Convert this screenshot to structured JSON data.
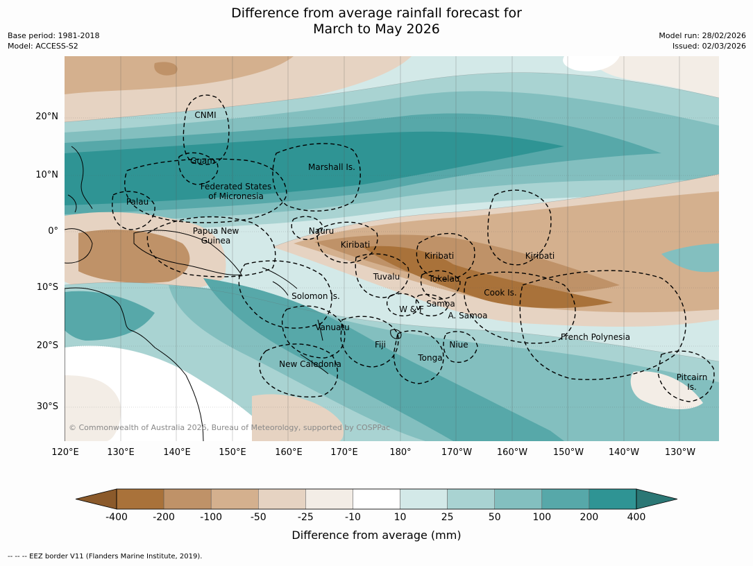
{
  "title_line1": "Difference from average rainfall forecast for",
  "title_line2": "March to May 2026",
  "meta_left": {
    "base_period": "Base period: 1981-2018",
    "model": "Model: ACCESS-S2"
  },
  "meta_right": {
    "model_run": "Model run: 28/02/2026",
    "issued": "Issued: 02/03/2026"
  },
  "lat_labels": [
    "20°N",
    "10°N",
    "0°",
    "10°S",
    "20°S",
    "30°S"
  ],
  "lon_labels": [
    "120°E",
    "130°E",
    "140°E",
    "150°E",
    "160°E",
    "170°E",
    "180°",
    "170°W",
    "160°W",
    "150°W",
    "140°W",
    "130°W"
  ],
  "places": {
    "cnmi": "CNMI",
    "guam": "Guam",
    "marshall": "Marshall Is.",
    "fsm_line1": "Federated States",
    "fsm_line2": "of Micronesia",
    "palau": "Palau",
    "png_line1": "Papua New",
    "png_line2": "Guinea",
    "nauru": "Nauru",
    "kiribati_west": "Kiribati",
    "kiribati_central": "Kiribati",
    "kiribati_east": "Kiribati",
    "tuvalu": "Tuvalu",
    "tokelau": "Tokelau",
    "cook": "Cook Is.",
    "solomon": "Solomon Is.",
    "wf": "W & F",
    "samoa": "Samoa",
    "asamoa": "A. Samoa",
    "vanuatu": "Vanuatu",
    "fiji": "Fiji",
    "niue": "Niue",
    "tonga": "Tonga",
    "frenchpoly": "French Polynesia",
    "newcal": "New Caledonia",
    "pitcairn_line1": "Pitcairn",
    "pitcairn_line2": "Is."
  },
  "copyright": "© Commonwealth of Australia 2026, Bureau of Meteorology, supported by COSPPac",
  "colorbar": {
    "labels": [
      "-400",
      "-200",
      "-100",
      "-50",
      "-25",
      "-10",
      "10",
      "25",
      "50",
      "100",
      "200",
      "400"
    ],
    "colors": [
      "#a9723a",
      "#bf9268",
      "#d4b08e",
      "#e6d3c2",
      "#f3ede6",
      "#ffffff",
      "#d3e9e8",
      "#a9d3d2",
      "#83bfbf",
      "#57a8a9",
      "#2f9494"
    ],
    "low_extend_color": "#8b5a2b",
    "high_extend_color": "#2b7775",
    "title": "Difference from average (mm)"
  },
  "footer": "-- -- -- EEZ border V11 (Flanders Marine Institute, 2019)."
}
